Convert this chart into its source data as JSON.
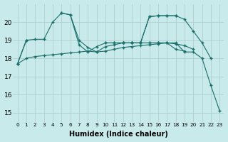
{
  "xlabel": "Humidex (Indice chaleur)",
  "bg_color": "#c8eaea",
  "grid_color": "#b0cecf",
  "line_color": "#1a6e6a",
  "xmin": -0.5,
  "xmax": 23.5,
  "ymin": 14.5,
  "ymax": 21.0,
  "yticks": [
    15,
    16,
    17,
    18,
    19,
    20
  ],
  "xticks": [
    0,
    1,
    2,
    3,
    4,
    5,
    6,
    7,
    8,
    9,
    10,
    11,
    12,
    13,
    14,
    15,
    16,
    17,
    18,
    19,
    20,
    21,
    22,
    23
  ],
  "series": {
    "A": [
      17.7,
      18.0,
      18.1,
      18.15,
      18.2,
      18.25,
      18.3,
      18.35,
      18.4,
      18.35,
      18.4,
      18.5,
      18.6,
      18.65,
      18.7,
      18.75,
      18.8,
      18.85,
      18.8,
      18.7,
      18.5,
      null,
      null,
      null
    ],
    "B": [
      17.7,
      19.0,
      19.05,
      19.05,
      20.0,
      20.5,
      20.4,
      18.75,
      18.35,
      18.65,
      18.85,
      18.85,
      18.85,
      18.85,
      18.85,
      18.85,
      18.85,
      18.85,
      18.5,
      18.4,
      null,
      null,
      null,
      null
    ],
    "C": [
      17.7,
      19.0,
      null,
      null,
      null,
      20.5,
      20.4,
      19.0,
      18.6,
      18.35,
      18.65,
      18.75,
      18.85,
      18.85,
      18.85,
      20.3,
      20.35,
      20.35,
      20.35,
      20.15,
      19.5,
      18.85,
      18.0,
      null
    ],
    "D": [
      null,
      null,
      null,
      null,
      null,
      null,
      null,
      null,
      null,
      null,
      18.85,
      18.85,
      18.85,
      18.85,
      18.85,
      20.3,
      20.35,
      20.35,
      20.35,
      null,
      null,
      null,
      null,
      null
    ],
    "E": [
      null,
      null,
      null,
      null,
      null,
      null,
      null,
      null,
      null,
      null,
      null,
      null,
      18.85,
      18.85,
      18.85,
      18.85,
      18.85,
      18.85,
      18.85,
      18.35,
      18.35,
      18.0,
      16.5,
      15.1
    ]
  }
}
